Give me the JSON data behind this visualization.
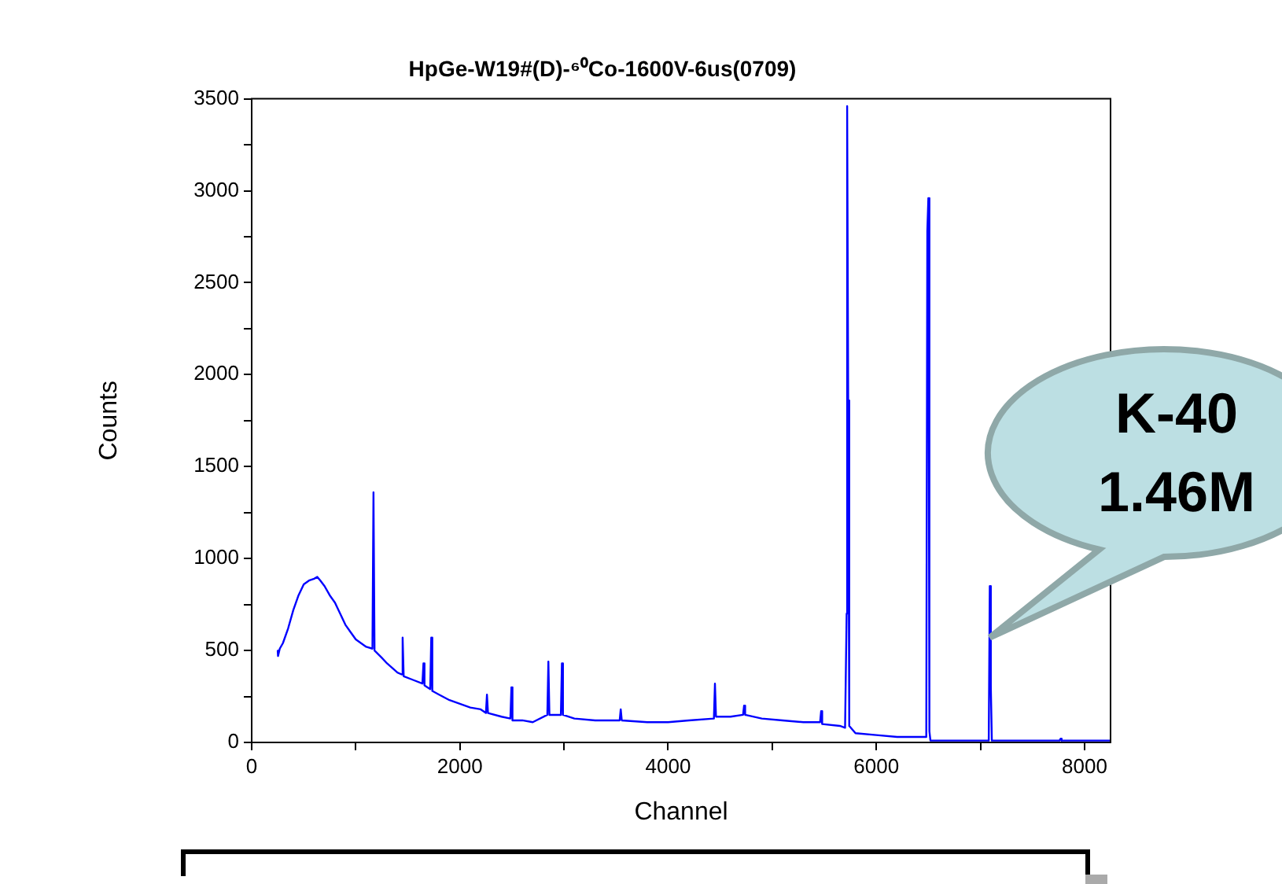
{
  "chart_data": {
    "type": "line",
    "title": "HpGe-W19#(D)-⁶⁰Co-1600V-6us(0709)",
    "xlabel": "Channel",
    "ylabel": "Counts",
    "series": [
      {
        "color": "#0000ff",
        "x": [
          250,
          253,
          270,
          300,
          350,
          400,
          450,
          500,
          550,
          600,
          630,
          660,
          700,
          750,
          800,
          850,
          900,
          950,
          1000,
          1050,
          1100,
          1160,
          1170,
          1180,
          1250,
          1300,
          1400,
          1440,
          1450,
          1460,
          1550,
          1640,
          1650,
          1660,
          1715,
          1725,
          1735,
          1800,
          1900,
          2000,
          2100,
          2200,
          2250,
          2260,
          2270,
          2400,
          2485,
          2495,
          2505,
          2600,
          2700,
          2840,
          2850,
          2860,
          2970,
          2980,
          2990,
          3100,
          3300,
          3535,
          3545,
          3555,
          3800,
          4000,
          4200,
          4440,
          4450,
          4460,
          4600,
          4720,
          4730,
          4740,
          4900,
          5100,
          5300,
          5460,
          5470,
          5480,
          5650,
          5700,
          5715,
          5720,
          5730,
          5740,
          5800,
          6000,
          6200,
          6400,
          6480,
          6490,
          6500,
          6510,
          6520,
          6700,
          6900,
          7080,
          7090,
          7100,
          7110,
          7300,
          7500,
          7760,
          7770,
          7780,
          8000,
          8250
        ],
        "values": [
          500,
          470,
          510,
          540,
          620,
          720,
          800,
          860,
          880,
          890,
          900,
          880,
          850,
          800,
          760,
          700,
          640,
          600,
          560,
          540,
          520,
          510,
          1360,
          500,
          460,
          430,
          380,
          370,
          570,
          360,
          340,
          320,
          430,
          310,
          290,
          570,
          280,
          260,
          230,
          210,
          190,
          180,
          160,
          260,
          160,
          140,
          130,
          300,
          120,
          120,
          110,
          150,
          440,
          150,
          150,
          430,
          150,
          130,
          120,
          120,
          180,
          120,
          110,
          110,
          120,
          130,
          320,
          140,
          140,
          150,
          200,
          150,
          130,
          120,
          110,
          110,
          170,
          100,
          90,
          80,
          700,
          3460,
          1860,
          90,
          50,
          40,
          30,
          30,
          30,
          2780,
          2960,
          60,
          10,
          10,
          10,
          10,
          850,
          300,
          10,
          10,
          10,
          10,
          20,
          10,
          10,
          10
        ]
      }
    ],
    "xlim": [
      0,
      8250
    ],
    "xticks": [
      0,
      {
        "value": 1000,
        "label": null
      },
      2000,
      {
        "value": 3000,
        "label": null
      },
      4000,
      {
        "value": 5000,
        "label": null
      },
      6000,
      {
        "value": 7000,
        "label": null
      },
      8000
    ],
    "ylim": [
      0,
      3500
    ],
    "yticks": [
      0,
      {
        "value": 250,
        "label": null
      },
      500,
      {
        "value": 750,
        "label": null
      },
      1000,
      {
        "value": 1250,
        "label": null
      },
      1500,
      {
        "value": 1750,
        "label": null
      },
      2000,
      {
        "value": 2250,
        "label": null
      },
      2500,
      {
        "value": 2750,
        "label": null
      },
      3000,
      {
        "value": 3250,
        "label": null
      },
      3500
    ],
    "grid": false,
    "legend": false,
    "marker": "none",
    "line_style": "solid",
    "annotations": [
      {
        "text": "K-40\n1.46M",
        "x": 7090,
        "y": 570
      }
    ]
  }
}
